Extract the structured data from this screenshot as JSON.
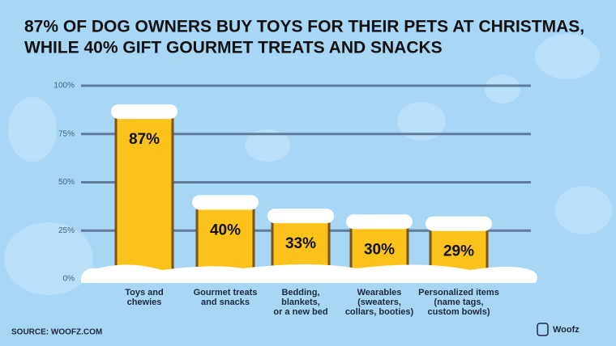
{
  "chart_data": {
    "type": "bar",
    "title": [
      "87% OF DOG OWNERS BUY TOYS FOR THEIR PETS AT CHRISTMAS,",
      "WHILE 40% GIFT GOURMET TREATS  AND SNACKS"
    ],
    "categories": [
      [
        "Toys and",
        "chewies"
      ],
      [
        "Gourmet treats",
        "and snacks"
      ],
      [
        "Bedding,",
        "blankets,",
        "or a new bed"
      ],
      [
        "Wearables",
        "(sweaters,",
        "collars, booties)"
      ],
      [
        "Personalized items",
        "(name tags,",
        "custom bowls)"
      ]
    ],
    "values": [
      87,
      40,
      33,
      30,
      29
    ],
    "value_labels": [
      "87%",
      "40%",
      "33%",
      "30%",
      "29%"
    ],
    "color": "#fbc21b",
    "ylim": [
      0,
      100
    ],
    "yticks": [
      {
        "value": 0,
        "label": "0%"
      },
      {
        "value": 25,
        "label": "25%"
      },
      {
        "value": 50,
        "label": "50%"
      },
      {
        "value": 75,
        "label": "75%"
      },
      {
        "value": 100,
        "label": "100%"
      }
    ],
    "grid": true,
    "source": "SOURCE: WOOFZ.COM",
    "brand": "Woofz"
  }
}
